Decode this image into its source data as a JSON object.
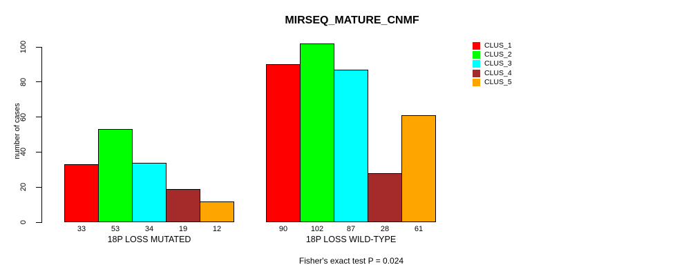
{
  "chart_data": {
    "type": "bar",
    "title": "MIRSEQ_MATURE_CNMF",
    "ylabel": "number of cases",
    "xlabel": "",
    "ylim": [
      0,
      100
    ],
    "yticks": [
      0,
      20,
      40,
      60,
      80,
      100
    ],
    "grid": false,
    "categories": [
      "18P LOSS MUTATED",
      "18P LOSS WILD-TYPE"
    ],
    "series": [
      {
        "name": "CLUS_1",
        "color": "#ff0000",
        "values": [
          33,
          90
        ]
      },
      {
        "name": "CLUS_2",
        "color": "#00ff00",
        "values": [
          53,
          102
        ]
      },
      {
        "name": "CLUS_3",
        "color": "#00ffff",
        "values": [
          34,
          87
        ]
      },
      {
        "name": "CLUS_4",
        "color": "#a52a2a",
        "values": [
          19,
          28
        ]
      },
      {
        "name": "CLUS_5",
        "color": "#ffa500",
        "values": [
          12,
          61
        ]
      }
    ],
    "bar_value_labels_shown": true,
    "legend": {
      "position": "right"
    },
    "footnote": "Fisher's exact test P = 0.024",
    "axis_color": "#000000",
    "bar_border_color": "#000000",
    "background_color": "#ffffff"
  }
}
